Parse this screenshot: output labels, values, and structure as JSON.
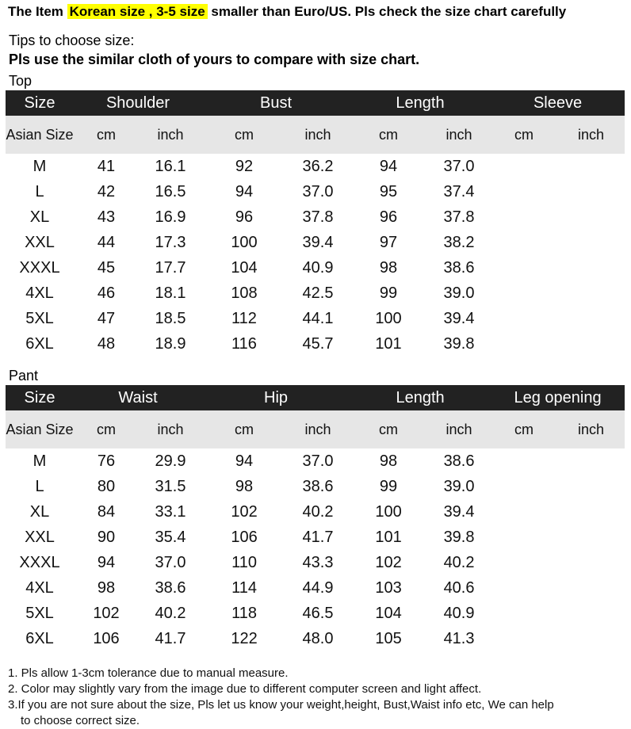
{
  "headline": {
    "prefix": "The Item ",
    "highlight": "Korean size , 3-5 size",
    "suffix": " smaller than Euro/US. Pls check the size chart carefully"
  },
  "tips": {
    "line1": "Tips to choose size:",
    "line2": "Pls use the similar cloth of yours to compare with size chart."
  },
  "top": {
    "label": "Top",
    "headers": [
      "Size",
      "Shoulder",
      "Bust",
      "Length",
      "Sleeve"
    ],
    "subheaders": {
      "size": "Asian Size",
      "units": [
        "cm",
        "inch",
        "cm",
        "inch",
        "cm",
        "inch",
        "cm",
        "inch"
      ]
    },
    "rows": [
      [
        "M",
        "41",
        "16.1",
        "92",
        "36.2",
        "94",
        "37.0",
        "",
        ""
      ],
      [
        "L",
        "42",
        "16.5",
        "94",
        "37.0",
        "95",
        "37.4",
        "",
        ""
      ],
      [
        "XL",
        "43",
        "16.9",
        "96",
        "37.8",
        "96",
        "37.8",
        "",
        ""
      ],
      [
        "XXL",
        "44",
        "17.3",
        "100",
        "39.4",
        "97",
        "38.2",
        "",
        ""
      ],
      [
        "XXXL",
        "45",
        "17.7",
        "104",
        "40.9",
        "98",
        "38.6",
        "",
        ""
      ],
      [
        "4XL",
        "46",
        "18.1",
        "108",
        "42.5",
        "99",
        "39.0",
        "",
        ""
      ],
      [
        "5XL",
        "47",
        "18.5",
        "112",
        "44.1",
        "100",
        "39.4",
        "",
        ""
      ],
      [
        "6XL",
        "48",
        "18.9",
        "116",
        "45.7",
        "101",
        "39.8",
        "",
        ""
      ]
    ]
  },
  "pant": {
    "label": "Pant",
    "headers": [
      "Size",
      "Waist",
      "Hip",
      "Length",
      "Leg opening"
    ],
    "subheaders": {
      "size": "Asian Size",
      "units": [
        "cm",
        "inch",
        "cm",
        "inch",
        "cm",
        "inch",
        "cm",
        "inch"
      ]
    },
    "rows": [
      [
        "M",
        "76",
        "29.9",
        "94",
        "37.0",
        "98",
        "38.6",
        "",
        ""
      ],
      [
        "L",
        "80",
        "31.5",
        "98",
        "38.6",
        "99",
        "39.0",
        "",
        ""
      ],
      [
        "XL",
        "84",
        "33.1",
        "102",
        "40.2",
        "100",
        "39.4",
        "",
        ""
      ],
      [
        "XXL",
        "90",
        "35.4",
        "106",
        "41.7",
        "101",
        "39.8",
        "",
        ""
      ],
      [
        "XXXL",
        "94",
        "37.0",
        "110",
        "43.3",
        "102",
        "40.2",
        "",
        ""
      ],
      [
        "4XL",
        "98",
        "38.6",
        "114",
        "44.9",
        "103",
        "40.6",
        "",
        ""
      ],
      [
        "5XL",
        "102",
        "40.2",
        "118",
        "46.5",
        "104",
        "40.9",
        "",
        ""
      ],
      [
        "6XL",
        "106",
        "41.7",
        "122",
        "48.0",
        "105",
        "41.3",
        "",
        ""
      ]
    ]
  },
  "notes": [
    "1. Pls allow 1-3cm tolerance due to manual measure.",
    "2. Color may slightly vary from the image due to different computer screen and light affect.",
    "3.If you are not sure about the size, Pls let us know your weight,height, Bust,Waist info etc, We can help",
    "to choose correct size."
  ],
  "colors": {
    "header_bg": "#222222",
    "subheader_bg": "#e6e6e6",
    "highlight": "#ffff00"
  }
}
